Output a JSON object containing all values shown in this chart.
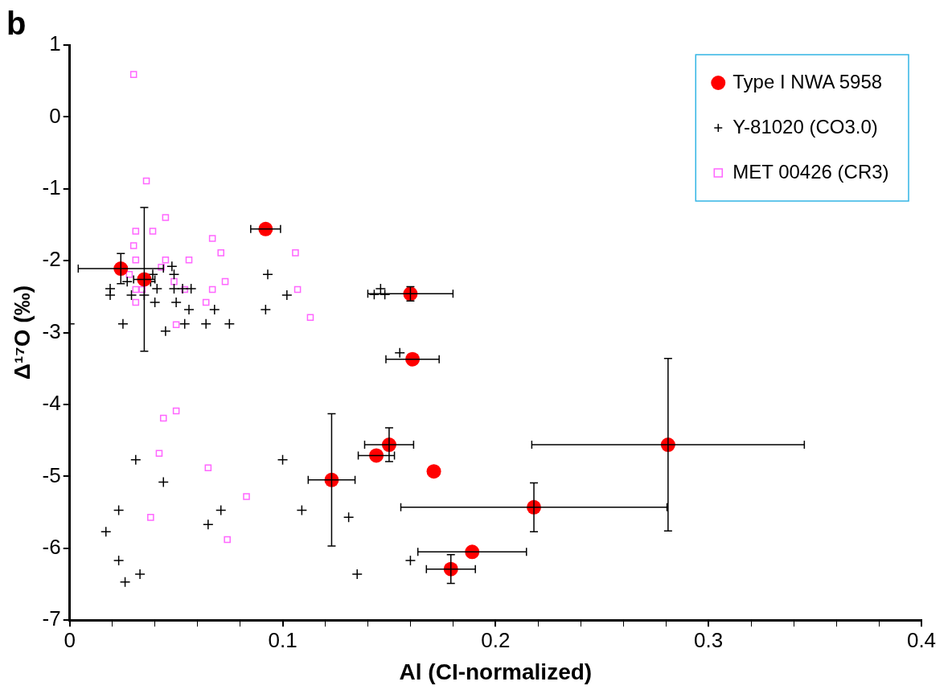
{
  "chart_data": {
    "type": "scatter",
    "title": "b",
    "xlabel": "Al (CI-normalized)",
    "ylabel": "Δ¹⁷O (‰)",
    "xlim": [
      0,
      0.4
    ],
    "ylim": [
      -7,
      1
    ],
    "xticks": [
      0,
      {
        "value": 0.02,
        "label": null
      },
      {
        "value": 0.04,
        "label": null
      },
      {
        "value": 0.06,
        "label": null
      },
      {
        "value": 0.08,
        "label": null
      },
      0.1,
      {
        "value": 0.12,
        "label": null
      },
      {
        "value": 0.14,
        "label": null
      },
      {
        "value": 0.16,
        "label": null
      },
      {
        "value": 0.18,
        "label": null
      },
      0.2,
      {
        "value": 0.22,
        "label": null
      },
      {
        "value": 0.24,
        "label": null
      },
      {
        "value": 0.26,
        "label": null
      },
      {
        "value": 0.28,
        "label": null
      },
      0.3,
      {
        "value": 0.32,
        "label": null
      },
      {
        "value": 0.34,
        "label": null
      },
      {
        "value": 0.36,
        "label": null
      },
      {
        "value": 0.38,
        "label": null
      },
      0.4
    ],
    "yticks": [
      -7,
      -6,
      -5,
      -4,
      -3,
      -2,
      -1,
      0,
      1
    ],
    "grid": false,
    "legend": "top right",
    "series": [
      {
        "name": "Type I NWA 5958",
        "color": "#ff0000",
        "marker": "circle",
        "x": [
          0.024,
          0.035,
          0.092,
          0.16,
          0.161,
          0.123,
          0.15,
          0.144,
          0.171,
          0.281,
          0.218,
          0.189,
          0.179
        ],
        "values": [
          -2.11,
          -2.26,
          -1.56,
          -2.46,
          -3.37,
          -5.05,
          -4.56,
          -4.71,
          -4.93,
          -4.56,
          -5.43,
          -6.05,
          -6.29
        ],
        "errors": [
          0.21,
          1.0,
          null,
          0.1,
          null,
          0.92,
          0.235,
          null,
          null,
          1.2,
          0.34,
          null,
          0.2
        ],
        "xerrors": [
          0.02,
          0.005,
          0.007,
          0.02,
          0.0125,
          0.011,
          0.0115,
          0.0085,
          null,
          0.064,
          0.0625,
          0.0255,
          0.0115
        ]
      },
      {
        "name": "Y-81020 (CO3.0)",
        "color": "#000000",
        "marker": "cross",
        "x": [
          0.048,
          0.049,
          0.039,
          0.027,
          0.038,
          0.019,
          0.041,
          0.049,
          0.053,
          0.057,
          0.019,
          0.029,
          0.035,
          0.04,
          0.05,
          0.056,
          0.068,
          0.025,
          0.045,
          0.054,
          0.064,
          0.075,
          0.0,
          0.093,
          0.092,
          0.102,
          0.146,
          0.143,
          0.148,
          0.155,
          0.031,
          0.044,
          0.023,
          0.017,
          0.071,
          0.065,
          0.1,
          0.109,
          0.131,
          0.023,
          0.033,
          0.026,
          0.135,
          0.16
        ],
        "values": [
          -2.08,
          -2.19,
          -2.19,
          -2.29,
          -2.29,
          -2.39,
          -2.39,
          -2.39,
          -2.39,
          -2.39,
          -2.48,
          -2.48,
          -2.48,
          -2.58,
          -2.58,
          -2.68,
          -2.68,
          -2.88,
          -2.98,
          -2.88,
          -2.88,
          -2.88,
          -2.88,
          -2.19,
          -2.68,
          -2.48,
          -2.39,
          -2.47,
          -2.47,
          -3.28,
          -4.77,
          -5.08,
          -5.47,
          -5.77,
          -5.47,
          -5.67,
          -4.77,
          -5.47,
          -5.57,
          -6.17,
          -6.36,
          -6.47,
          -6.36,
          -6.17
        ]
      },
      {
        "name": "MET 00426 (CR3)",
        "color": "#ff66ff",
        "marker": "square",
        "x": [
          0.03,
          0.036,
          0.045,
          0.031,
          0.039,
          0.067,
          0.03,
          0.071,
          0.106,
          0.031,
          0.045,
          0.056,
          0.043,
          0.028,
          0.049,
          0.073,
          0.031,
          0.034,
          0.054,
          0.067,
          0.107,
          0.031,
          0.064,
          0.05,
          0.113,
          0.05,
          0.044,
          0.042,
          0.065,
          0.083,
          0.038,
          0.074
        ],
        "values": [
          0.59,
          -0.89,
          -1.4,
          -1.59,
          -1.59,
          -1.69,
          -1.79,
          -1.89,
          -1.89,
          -1.99,
          -1.99,
          -1.99,
          -2.09,
          -2.19,
          -2.29,
          -2.29,
          -2.4,
          -2.4,
          -2.4,
          -2.4,
          -2.4,
          -2.58,
          -2.58,
          -2.89,
          -2.79,
          -4.09,
          -4.19,
          -4.68,
          -4.88,
          -5.28,
          -5.57,
          -5.88
        ]
      }
    ]
  }
}
